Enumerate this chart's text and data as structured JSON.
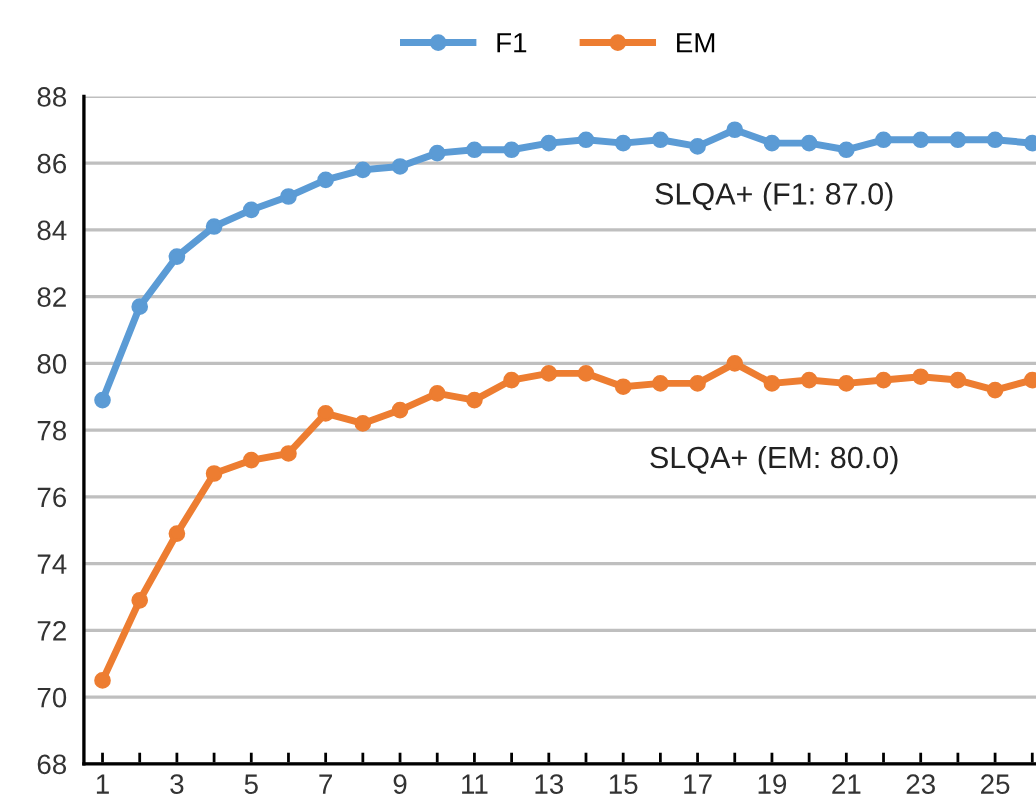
{
  "chart_data": {
    "type": "line",
    "x": [
      1,
      2,
      3,
      4,
      5,
      6,
      7,
      8,
      9,
      10,
      11,
      12,
      13,
      14,
      15,
      16,
      17,
      18,
      19,
      20,
      21,
      22,
      23,
      24,
      25,
      26
    ],
    "series": [
      {
        "name": "F1",
        "color": "#5b9bd5",
        "values": [
          78.9,
          81.7,
          83.2,
          84.1,
          84.6,
          85.0,
          85.5,
          85.8,
          85.9,
          86.3,
          86.4,
          86.4,
          86.6,
          86.7,
          86.6,
          86.7,
          86.5,
          87.0,
          86.6,
          86.6,
          86.4,
          86.7,
          86.7,
          86.7,
          86.7,
          86.6
        ]
      },
      {
        "name": "EM",
        "color": "#ed7d31",
        "values": [
          70.5,
          72.9,
          74.9,
          76.7,
          77.1,
          77.3,
          78.5,
          78.2,
          78.6,
          79.1,
          78.9,
          79.5,
          79.7,
          79.7,
          79.3,
          79.4,
          79.4,
          80.0,
          79.4,
          79.5,
          79.4,
          79.5,
          79.6,
          79.5,
          79.2,
          79.5
        ]
      }
    ],
    "xlim": [
      0.5,
      26.1
    ],
    "xticks": [
      1,
      {
        "value": 2,
        "label": null
      },
      3,
      {
        "value": 4,
        "label": null
      },
      5,
      {
        "value": 6,
        "label": null
      },
      7,
      {
        "value": 8,
        "label": null
      },
      9,
      {
        "value": 10,
        "label": null
      },
      11,
      {
        "value": 12,
        "label": null
      },
      13,
      {
        "value": 14,
        "label": null
      },
      15,
      {
        "value": 16,
        "label": null
      },
      17,
      {
        "value": 18,
        "label": null
      },
      19,
      {
        "value": 20,
        "label": null
      },
      21,
      {
        "value": 22,
        "label": null
      },
      23,
      {
        "value": 24,
        "label": null
      },
      25,
      {
        "value": 26,
        "label": null
      }
    ],
    "ylim": [
      68,
      88
    ],
    "yticks": [
      68,
      70,
      72,
      74,
      76,
      78,
      80,
      82,
      84,
      86,
      88
    ],
    "grid": "y",
    "legend": "top",
    "marker": "circle",
    "line_style": "solid",
    "annotations": [
      "SLQA+ (F1: 87.0)",
      "SLQA+ (EM: 80.0)"
    ]
  }
}
